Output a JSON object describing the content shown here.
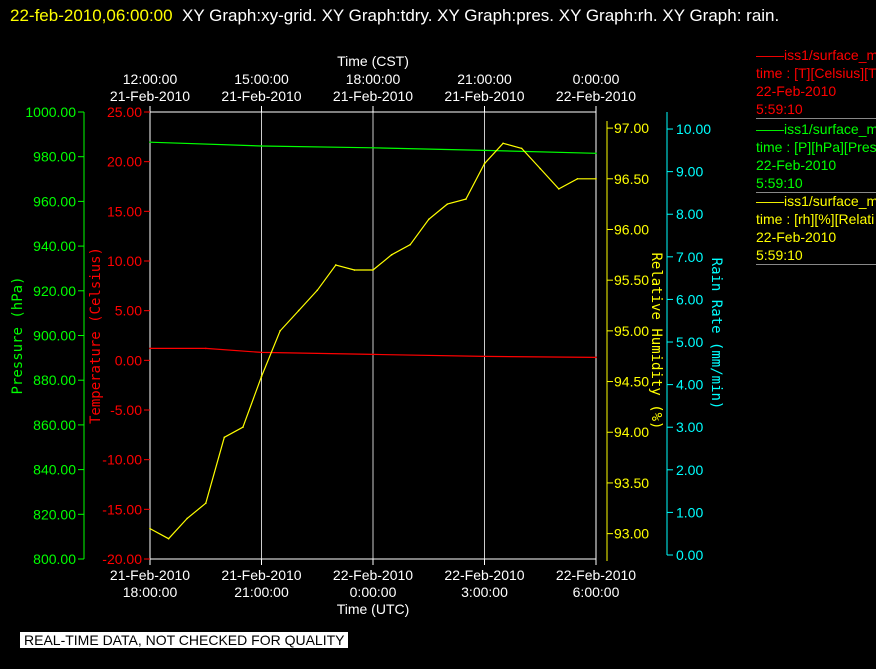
{
  "header": {
    "timestamp": "22-feb-2010,06:00:00",
    "graphs": "XY Graph:xy-grid.  XY Graph:tdry.  XY Graph:pres.  XY Graph:rh.  XY Graph: rain."
  },
  "legend": [
    {
      "line1": "——iss1/surface_me",
      "line2": "time : [T][Celsius][T",
      "line3": "22-Feb-2010",
      "line4": "5:59:10",
      "color": "#ff0000"
    },
    {
      "line1": "——iss1/surface_me",
      "line2": "time : [P][hPa][Pres",
      "line3": "22-Feb-2010",
      "line4": "5:59:10",
      "color": "#00ff00"
    },
    {
      "line1": "——iss1/surface_me",
      "line2": "time : [rh][%][Relati",
      "line3": "22-Feb-2010",
      "line4": "5:59:10",
      "color": "#ffff00"
    }
  ],
  "quality_notice": "REAL-TIME DATA, NOT CHECKED FOR QUALITY",
  "chart_data": {
    "type": "line",
    "grid": true,
    "x_utc_hours_label": "Time (UTC)",
    "x_top_label": "Time (CST)",
    "x_range": [
      "21-Feb-2010 18:00:00",
      "22-Feb-2010 06:00:00"
    ],
    "x_ticks_bottom": [
      {
        "date": "21-Feb-2010",
        "time": "18:00:00"
      },
      {
        "date": "21-Feb-2010",
        "time": "21:00:00"
      },
      {
        "date": "22-Feb-2010",
        "time": "0:00:00"
      },
      {
        "date": "22-Feb-2010",
        "time": "3:00:00"
      },
      {
        "date": "22-Feb-2010",
        "time": "6:00:00"
      }
    ],
    "x_ticks_top": [
      {
        "time": "12:00:00",
        "date": "21-Feb-2010"
      },
      {
        "time": "15:00:00",
        "date": "21-Feb-2010"
      },
      {
        "time": "18:00:00",
        "date": "21-Feb-2010"
      },
      {
        "time": "21:00:00",
        "date": "21-Feb-2010"
      },
      {
        "time": "0:00:00",
        "date": "22-Feb-2010"
      }
    ],
    "axes": {
      "pressure": {
        "label": "Pressure (hPa)",
        "color": "#00ff00",
        "ylim": [
          800,
          1000
        ],
        "ticks": [
          "800.00",
          "820.00",
          "840.00",
          "860.00",
          "880.00",
          "900.00",
          "920.00",
          "940.00",
          "960.00",
          "980.00",
          "1000.00"
        ]
      },
      "temperature": {
        "label": "Temperature (Celsius)",
        "color": "#ff0000",
        "ylim": [
          -20,
          25
        ],
        "ticks": [
          "-20.00",
          "-15.00",
          "-10.00",
          "-5.00",
          "0.00",
          "5.00",
          "10.00",
          "15.00",
          "20.00",
          "25.00"
        ]
      },
      "rh": {
        "label": "Relative Humidity (%)",
        "color": "#ffff00",
        "ylim": [
          92.73,
          97.07
        ],
        "ticks": [
          "93.00",
          "93.50",
          "94.00",
          "94.50",
          "95.00",
          "95.50",
          "96.00",
          "96.50",
          "97.00"
        ]
      },
      "rain": {
        "label": "Rain Rate (mm/min)",
        "color": "#00ffff",
        "ylim": [
          0,
          10.4
        ],
        "ticks": [
          "0.00",
          "1.00",
          "2.00",
          "3.00",
          "4.00",
          "5.00",
          "6.00",
          "7.00",
          "8.00",
          "9.00",
          "10.00"
        ]
      }
    },
    "series": [
      {
        "name": "Pressure",
        "axis": "pressure",
        "color": "#00ff00",
        "x": [
          "21-Feb-2010 18:00",
          "21-Feb-2010 21:00",
          "22-Feb-2010 00:00",
          "22-Feb-2010 03:00",
          "22-Feb-2010 06:00"
        ],
        "y": [
          986.5,
          984.8,
          984.0,
          982.8,
          981.5
        ]
      },
      {
        "name": "Temperature",
        "axis": "temperature",
        "color": "#ff0000",
        "x": [
          "21-Feb-2010 18:00",
          "21-Feb-2010 19:30",
          "21-Feb-2010 21:00",
          "22-Feb-2010 00:00",
          "22-Feb-2010 03:00",
          "22-Feb-2010 06:00"
        ],
        "y": [
          1.2,
          1.2,
          0.8,
          0.6,
          0.4,
          0.3
        ]
      },
      {
        "name": "Relative Humidity",
        "axis": "rh",
        "color": "#ffff00",
        "x": [
          "21-Feb-2010 18:00",
          "21-Feb-2010 18:30",
          "21-Feb-2010 19:00",
          "21-Feb-2010 19:30",
          "21-Feb-2010 20:00",
          "21-Feb-2010 20:30",
          "21-Feb-2010 21:00",
          "21-Feb-2010 21:30",
          "21-Feb-2010 22:00",
          "21-Feb-2010 22:30",
          "21-Feb-2010 23:00",
          "21-Feb-2010 23:30",
          "22-Feb-2010 00:00",
          "22-Feb-2010 00:30",
          "22-Feb-2010 01:00",
          "22-Feb-2010 01:30",
          "22-Feb-2010 02:00",
          "22-Feb-2010 02:30",
          "22-Feb-2010 03:00",
          "22-Feb-2010 03:30",
          "22-Feb-2010 04:00",
          "22-Feb-2010 04:30",
          "22-Feb-2010 05:00",
          "22-Feb-2010 05:30",
          "22-Feb-2010 06:00"
        ],
        "y": [
          93.05,
          92.95,
          93.15,
          93.3,
          93.95,
          94.05,
          94.55,
          95.0,
          95.2,
          95.4,
          95.65,
          95.6,
          95.6,
          95.75,
          95.85,
          96.1,
          96.25,
          96.3,
          96.65,
          96.85,
          96.8,
          96.6,
          96.4,
          96.5,
          96.5
        ]
      },
      {
        "name": "Rain Rate",
        "axis": "rain",
        "color": "#00ffff",
        "x": [],
        "y": []
      }
    ]
  }
}
